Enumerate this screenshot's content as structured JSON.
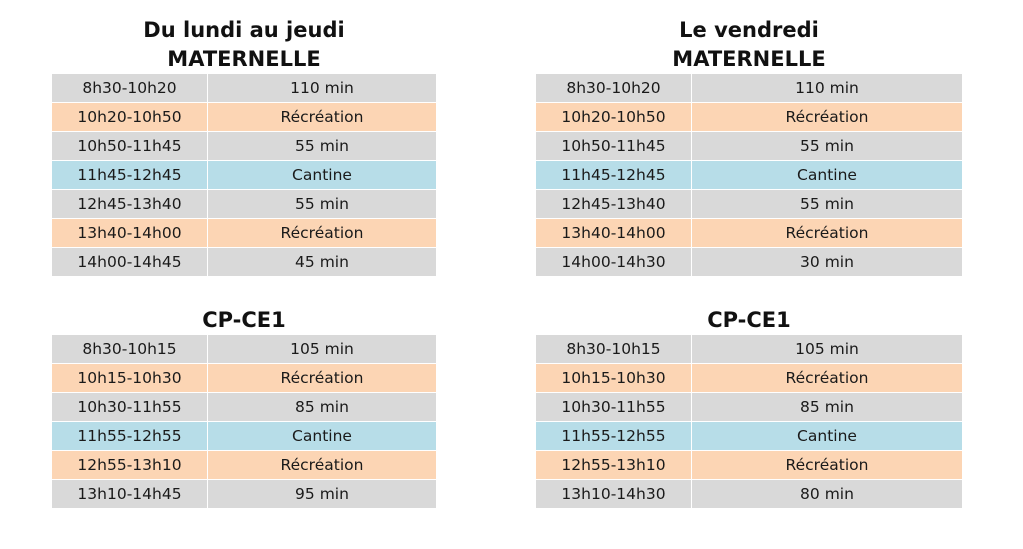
{
  "colors": {
    "grey": "#d9d9d9",
    "orange": "#fcd5b4",
    "blue": "#b7dde8"
  },
  "mon_thu": {
    "title_line1": "Du lundi au jeudi",
    "maternelle_title": "MATERNELLE",
    "maternelle_rows": [
      {
        "time": "8h30-10h20",
        "value": "110 min",
        "kind": "grey"
      },
      {
        "time": "10h20-10h50",
        "value": "Récréation",
        "kind": "orange"
      },
      {
        "time": "10h50-11h45",
        "value": "55 min",
        "kind": "grey"
      },
      {
        "time": "11h45-12h45",
        "value": "Cantine",
        "kind": "blue"
      },
      {
        "time": "12h45-13h40",
        "value": "55 min",
        "kind": "grey"
      },
      {
        "time": "13h40-14h00",
        "value": "Récréation",
        "kind": "orange"
      },
      {
        "time": "14h00-14h45",
        "value": "45 min",
        "kind": "grey"
      }
    ],
    "cpce1_title": "CP-CE1",
    "cpce1_rows": [
      {
        "time": "8h30-10h15",
        "value": "105 min",
        "kind": "grey"
      },
      {
        "time": "10h15-10h30",
        "value": "Récréation",
        "kind": "orange"
      },
      {
        "time": "10h30-11h55",
        "value": "85 min",
        "kind": "grey"
      },
      {
        "time": "11h55-12h55",
        "value": "Cantine",
        "kind": "blue"
      },
      {
        "time": "12h55-13h10",
        "value": "Récréation",
        "kind": "orange"
      },
      {
        "time": "13h10-14h45",
        "value": "95 min",
        "kind": "grey"
      }
    ]
  },
  "friday": {
    "title_line1": "Le vendredi",
    "maternelle_title": "MATERNELLE",
    "maternelle_rows": [
      {
        "time": "8h30-10h20",
        "value": "110 min",
        "kind": "grey"
      },
      {
        "time": "10h20-10h50",
        "value": "Récréation",
        "kind": "orange"
      },
      {
        "time": "10h50-11h45",
        "value": "55 min",
        "kind": "grey"
      },
      {
        "time": "11h45-12h45",
        "value": "Cantine",
        "kind": "blue"
      },
      {
        "time": "12h45-13h40",
        "value": "55 min",
        "kind": "grey"
      },
      {
        "time": "13h40-14h00",
        "value": "Récréation",
        "kind": "orange"
      },
      {
        "time": "14h00-14h30",
        "value": "30 min",
        "kind": "grey"
      }
    ],
    "cpce1_title": "CP-CE1",
    "cpce1_rows": [
      {
        "time": "8h30-10h15",
        "value": "105 min",
        "kind": "grey"
      },
      {
        "time": "10h15-10h30",
        "value": "Récréation",
        "kind": "orange"
      },
      {
        "time": "10h30-11h55",
        "value": "85 min",
        "kind": "grey"
      },
      {
        "time": "11h55-12h55",
        "value": "Cantine",
        "kind": "blue"
      },
      {
        "time": "12h55-13h10",
        "value": "Récréation",
        "kind": "orange"
      },
      {
        "time": "13h10-14h30",
        "value": "80 min",
        "kind": "grey"
      }
    ]
  }
}
